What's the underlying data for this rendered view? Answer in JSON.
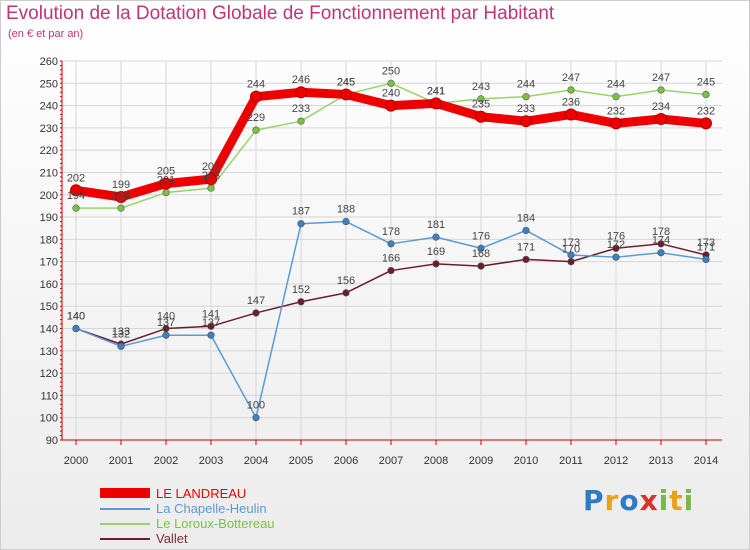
{
  "chart_data": {
    "type": "line",
    "title": "Evolution de la Dotation Globale de Fonctionnement par Habitant",
    "subtitle": "(en € et par an)",
    "xlabel": "",
    "ylabel": "",
    "ylim": [
      90,
      260
    ],
    "y_ticks": [
      90,
      100,
      110,
      120,
      130,
      140,
      150,
      160,
      170,
      180,
      190,
      200,
      210,
      220,
      230,
      240,
      250,
      260
    ],
    "categories": [
      "2000",
      "2001",
      "2002",
      "2003",
      "2004",
      "2005",
      "2006",
      "2007",
      "2008",
      "2009",
      "2010",
      "2011",
      "2012",
      "2013",
      "2014"
    ],
    "grid": true,
    "legend_position": "bottom-left",
    "series": [
      {
        "name": "Vallet",
        "color": "#6b1e2a",
        "marker": "#6b1e2a",
        "values": [
          140,
          133,
          140,
          141,
          147,
          152,
          156,
          166,
          169,
          168,
          171,
          170,
          176,
          178,
          173
        ]
      },
      {
        "name": "La Chapelle-Heulin",
        "color": "#5b9bd5",
        "marker": "#3d7fc1",
        "values": [
          140,
          132,
          137,
          137,
          100,
          187,
          188,
          178,
          181,
          176,
          184,
          173,
          172,
          174,
          171
        ]
      },
      {
        "name": "Le Loroux-Bottereau",
        "color": "#99d36a",
        "marker": "#7cc242",
        "values": [
          194,
          194,
          201,
          203,
          229,
          233,
          245,
          250,
          241,
          243,
          244,
          247,
          244,
          247,
          245
        ]
      },
      {
        "name": "LE LANDREAU",
        "color": "#ee0000",
        "marker": "#ee0000",
        "values": [
          202,
          199,
          205,
          207,
          244,
          246,
          245,
          240,
          241,
          235,
          233,
          236,
          232,
          234,
          232
        ]
      }
    ],
    "legend": [
      {
        "name": "LE LANDREAU",
        "color": "#ee0000",
        "text_color": "#ee0000",
        "swatch": 10
      },
      {
        "name": "La Chapelle-Heulin",
        "color": "#5b9bd5",
        "text_color": "#5b9bd5",
        "swatch": 2
      },
      {
        "name": "Le Loroux-Bottereau",
        "color": "#99d36a",
        "text_color": "#7cc242",
        "swatch": 2
      },
      {
        "name": "Vallet",
        "color": "#6b1e2a",
        "text_color": "#8a2a3a",
        "swatch": 2
      }
    ]
  },
  "logo": {
    "letters": [
      "P",
      "r",
      "o",
      "x",
      "i",
      "t",
      "i"
    ],
    "colors": [
      "#2e7bc4",
      "#e8a21c",
      "#2e7bc4",
      "#d9312b",
      "#7ab648",
      "#e8a21c",
      "#7ab648"
    ]
  }
}
